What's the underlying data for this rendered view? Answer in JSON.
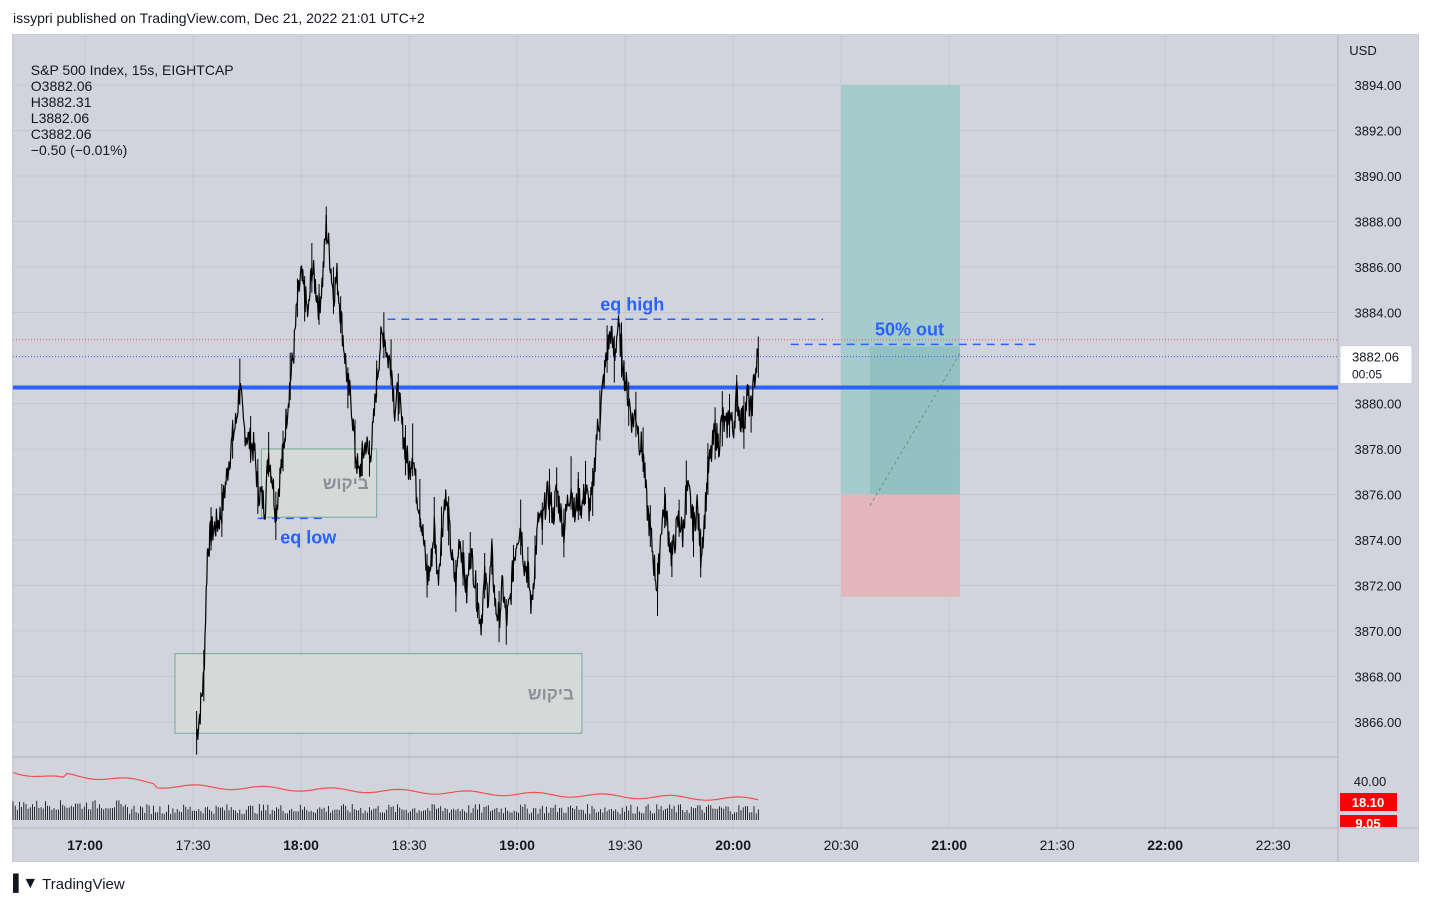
{
  "header": {
    "published_by": "issypri published on TradingView.com, Dec 21, 2022 21:01 UTC+2"
  },
  "legend": {
    "symbol": "S&P 500 Index, 15s, EIGHTCAP",
    "open": "O3882.06",
    "high": "H3882.31",
    "low": "L3882.06",
    "close": "C3882.06",
    "change": "−0.50 (−0.01%)"
  },
  "footer": {
    "brand": "TradingView"
  },
  "colors": {
    "background": "#d1d4dc",
    "candles": "#000000",
    "support_line": "#2962ff",
    "annotation_blue": "#2962ff",
    "target_zone": "#9ec9c9",
    "stop_zone": "#e4b3b8",
    "zone_box": "#d6dbd8",
    "volume_ma": "#ef5350",
    "price_label_bg": "#ffffff"
  },
  "chart_data": {
    "type": "line",
    "title": "",
    "currency_label": "USD",
    "ylim": [
      3864.5,
      3896.2
    ],
    "y_ticks": [
      {
        "value": 3894,
        "label": "3894.00"
      },
      {
        "value": 3892,
        "label": "3892.00"
      },
      {
        "value": 3890,
        "label": "3890.00"
      },
      {
        "value": 3888,
        "label": "3888.00"
      },
      {
        "value": 3886,
        "label": "3886.00"
      },
      {
        "value": 3884,
        "label": "3884.00"
      },
      {
        "value": 3880,
        "label": "3880.00"
      },
      {
        "value": 3878,
        "label": "3878.00"
      },
      {
        "value": 3876,
        "label": "3876.00"
      },
      {
        "value": 3874,
        "label": "3874.00"
      },
      {
        "value": 3872,
        "label": "3872.00"
      },
      {
        "value": 3870,
        "label": "3870.00"
      },
      {
        "value": 3868,
        "label": "3868.00"
      },
      {
        "value": 3866,
        "label": "3866.00"
      }
    ],
    "x_ticks": [
      {
        "t": 1020,
        "label": "17:00",
        "bold": true
      },
      {
        "t": 1050,
        "label": "17:30",
        "bold": false
      },
      {
        "t": 1080,
        "label": "18:00",
        "bold": true
      },
      {
        "t": 1110,
        "label": "18:30",
        "bold": false
      },
      {
        "t": 1140,
        "label": "19:00",
        "bold": true
      },
      {
        "t": 1170,
        "label": "19:30",
        "bold": false
      },
      {
        "t": 1200,
        "label": "20:00",
        "bold": true
      },
      {
        "t": 1230,
        "label": "20:30",
        "bold": false
      },
      {
        "t": 1260,
        "label": "21:00",
        "bold": true
      },
      {
        "t": 1290,
        "label": "21:30",
        "bold": false
      },
      {
        "t": 1320,
        "label": "22:00",
        "bold": true
      },
      {
        "t": 1350,
        "label": "22:30",
        "bold": false
      }
    ],
    "xlim": [
      1000,
      1368
    ],
    "price_series": {
      "name": "",
      "points": [
        [
          1051,
          3865.4
        ],
        [
          1052,
          3866.5
        ],
        [
          1053,
          3868.0
        ],
        [
          1054,
          3873.5
        ],
        [
          1055,
          3874.3
        ],
        [
          1057,
          3874.8
        ],
        [
          1058,
          3875.3
        ],
        [
          1060,
          3877.5
        ],
        [
          1061,
          3878.5
        ],
        [
          1062,
          3879.2
        ],
        [
          1063,
          3880.8
        ],
        [
          1064,
          3879.0
        ],
        [
          1066,
          3878.2
        ],
        [
          1067,
          3878.0
        ],
        [
          1068,
          3876.3
        ],
        [
          1070,
          3875.5
        ],
        [
          1071,
          3877.8
        ],
        [
          1072,
          3876.8
        ],
        [
          1073,
          3875.2
        ],
        [
          1074,
          3876.6
        ],
        [
          1075,
          3877.8
        ],
        [
          1076,
          3879.5
        ],
        [
          1077,
          3881.0
        ],
        [
          1078,
          3882.3
        ],
        [
          1079,
          3884.5
        ],
        [
          1080,
          3885.6
        ],
        [
          1081,
          3884.8
        ],
        [
          1082,
          3883.8
        ],
        [
          1083,
          3886.0
        ],
        [
          1084,
          3885.2
        ],
        [
          1085,
          3884.2
        ],
        [
          1086,
          3885.5
        ],
        [
          1087,
          3887.8
        ],
        [
          1088,
          3886.5
        ],
        [
          1089,
          3884.8
        ],
        [
          1090,
          3885.6
        ],
        [
          1091,
          3884.0
        ],
        [
          1092,
          3882.4
        ],
        [
          1093,
          3880.8
        ],
        [
          1094,
          3880.0
        ],
        [
          1095,
          3878.0
        ],
        [
          1096,
          3876.8
        ],
        [
          1097,
          3877.6
        ],
        [
          1098,
          3878.3
        ],
        [
          1099,
          3877.6
        ],
        [
          1100,
          3878.8
        ],
        [
          1101,
          3881.0
        ],
        [
          1102,
          3882.6
        ],
        [
          1103,
          3883.2
        ],
        [
          1104,
          3882.0
        ],
        [
          1105,
          3881.8
        ],
        [
          1106,
          3879.8
        ],
        [
          1107,
          3880.5
        ],
        [
          1108,
          3879.0
        ],
        [
          1109,
          3878.0
        ],
        [
          1110,
          3877.0
        ],
        [
          1111,
          3878.0
        ],
        [
          1112,
          3876.2
        ],
        [
          1113,
          3875.4
        ],
        [
          1114,
          3874.0
        ],
        [
          1115,
          3872.3
        ],
        [
          1116,
          3872.8
        ],
        [
          1117,
          3874.6
        ],
        [
          1118,
          3872.3
        ],
        [
          1119,
          3874.2
        ],
        [
          1120,
          3876.0
        ],
        [
          1121,
          3874.8
        ],
        [
          1122,
          3873.0
        ],
        [
          1123,
          3872.0
        ],
        [
          1124,
          3874.2
        ],
        [
          1125,
          3873.0
        ],
        [
          1126,
          3871.6
        ],
        [
          1127,
          3873.6
        ],
        [
          1128,
          3872.6
        ],
        [
          1129,
          3871.3
        ],
        [
          1130,
          3870.4
        ],
        [
          1131,
          3872.2
        ],
        [
          1132,
          3871.6
        ],
        [
          1133,
          3873.3
        ],
        [
          1134,
          3871.0
        ],
        [
          1135,
          3870.6
        ],
        [
          1136,
          3872.0
        ],
        [
          1137,
          3870.4
        ],
        [
          1138,
          3871.2
        ],
        [
          1139,
          3873.0
        ],
        [
          1140,
          3874.2
        ],
        [
          1141,
          3874.6
        ],
        [
          1142,
          3873.0
        ],
        [
          1143,
          3872.6
        ],
        [
          1144,
          3871.0
        ],
        [
          1145,
          3873.2
        ],
        [
          1146,
          3875.0
        ],
        [
          1147,
          3874.6
        ],
        [
          1148,
          3875.8
        ],
        [
          1149,
          3876.0
        ],
        [
          1150,
          3875.0
        ],
        [
          1151,
          3876.2
        ],
        [
          1152,
          3875.3
        ],
        [
          1153,
          3874.4
        ],
        [
          1154,
          3875.6
        ],
        [
          1155,
          3876.4
        ],
        [
          1156,
          3875.0
        ],
        [
          1157,
          3876.0
        ],
        [
          1158,
          3875.4
        ],
        [
          1159,
          3876.3
        ],
        [
          1160,
          3875.4
        ],
        [
          1161,
          3876.0
        ],
        [
          1162,
          3878.5
        ],
        [
          1163,
          3879.4
        ],
        [
          1164,
          3881.0
        ],
        [
          1165,
          3882.2
        ],
        [
          1166,
          3883.2
        ],
        [
          1167,
          3882.0
        ],
        [
          1168,
          3883.4
        ],
        [
          1169,
          3882.4
        ],
        [
          1170,
          3881.0
        ],
        [
          1171,
          3880.2
        ],
        [
          1172,
          3879.2
        ],
        [
          1173,
          3879.6
        ],
        [
          1174,
          3878.4
        ],
        [
          1175,
          3877.8
        ],
        [
          1176,
          3875.6
        ],
        [
          1177,
          3874.4
        ],
        [
          1178,
          3873.0
        ],
        [
          1179,
          3871.8
        ],
        [
          1180,
          3874.6
        ],
        [
          1181,
          3875.6
        ],
        [
          1182,
          3874.4
        ],
        [
          1183,
          3873.2
        ],
        [
          1184,
          3874.2
        ],
        [
          1185,
          3875.0
        ],
        [
          1186,
          3874.2
        ],
        [
          1187,
          3876.2
        ],
        [
          1188,
          3875.8
        ],
        [
          1189,
          3874.4
        ],
        [
          1190,
          3875.6
        ],
        [
          1191,
          3873.4
        ],
        [
          1192,
          3874.8
        ],
        [
          1193,
          3877.0
        ],
        [
          1194,
          3877.8
        ],
        [
          1195,
          3878.8
        ],
        [
          1196,
          3878.2
        ],
        [
          1197,
          3879.4
        ],
        [
          1198,
          3878.8
        ],
        [
          1199,
          3879.6
        ],
        [
          1200,
          3878.8
        ],
        [
          1201,
          3880.4
        ],
        [
          1202,
          3879.4
        ],
        [
          1203,
          3879.2
        ],
        [
          1204,
          3880.4
        ],
        [
          1205,
          3879.6
        ],
        [
          1206,
          3881.2
        ],
        [
          1207,
          3882.2
        ]
      ]
    },
    "volume_series": {
      "ma_label": "18.10",
      "volume_label": "9.05",
      "scale_label": "40.00"
    },
    "last_price": {
      "value": 3882.06,
      "label": "3882.06",
      "countdown": "00:05"
    },
    "support_level": 3880.7,
    "eq_high_level": 3883.7,
    "eq_low_level": 3874.95,
    "fifty_out_level": 3882.6,
    "annotations": {
      "eq_high": "eq high",
      "eq_low": "eq low",
      "fifty_out": "50% out",
      "zone_label_upper": "ביקוש",
      "zone_label_lower": "ביקוש"
    },
    "position": {
      "entry": 3876.0,
      "target": 3894.0,
      "stop": 3871.5,
      "t_start": 1230,
      "t_end": 1263
    },
    "demand_zones": [
      {
        "t_start": 1069,
        "t_end": 1101,
        "y_top": 3878.0,
        "y_bottom": 3875.0
      },
      {
        "t_start": 1045,
        "t_end": 1158,
        "y_top": 3869.0,
        "y_bottom": 3865.5
      }
    ]
  }
}
